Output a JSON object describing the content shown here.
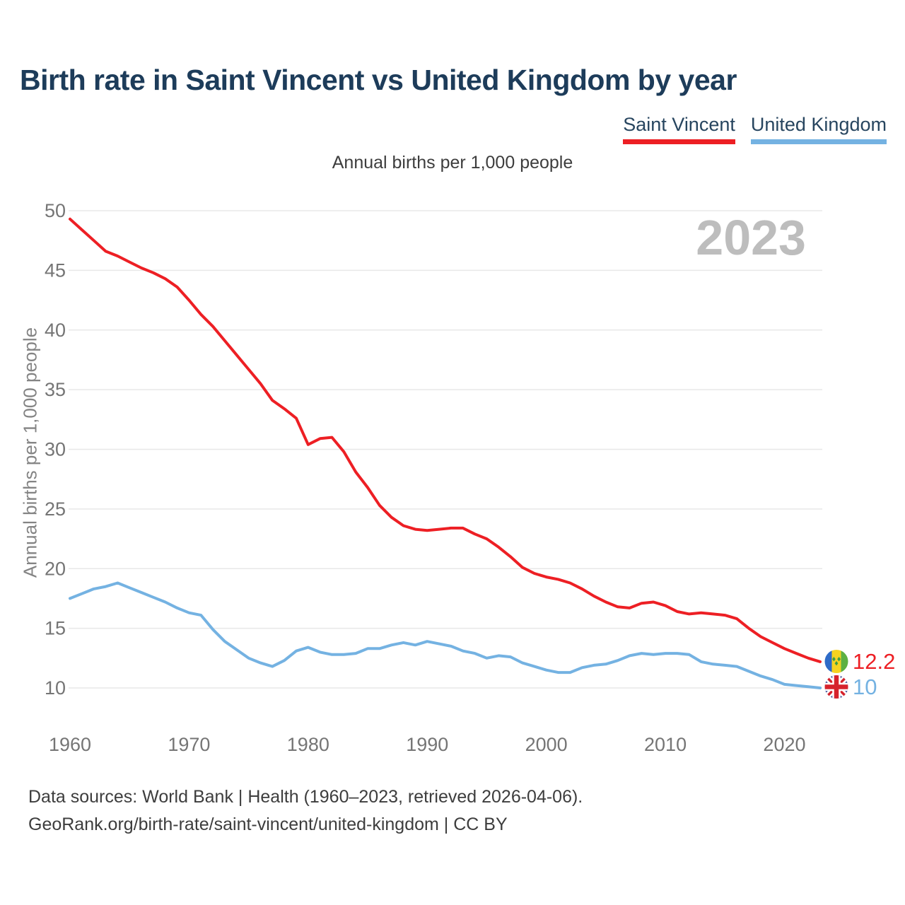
{
  "title": "Birth rate in Saint Vincent vs United Kingdom by year",
  "subtitle": "Annual births per 1,000 people",
  "watermark": "2023",
  "legend": {
    "items": [
      {
        "label": "Saint Vincent",
        "color": "#ed1f24"
      },
      {
        "label": "United Kingdom",
        "color": "#74b2e2"
      }
    ]
  },
  "end_labels": {
    "saint_vincent": "12.2",
    "united_kingdom": "10"
  },
  "footer": {
    "line1": "Data sources: World Bank | Health (1960–2023, retrieved 2026-04-06).",
    "line2": "GeoRank.org/birth-rate/saint-vincent/united-kingdom | CC BY"
  },
  "chart_data": {
    "type": "line",
    "title": "Birth rate in Saint Vincent vs United Kingdom by year",
    "ylabel": "Annual births per 1,000 people",
    "xlabel": "",
    "ylim": [
      10,
      50
    ],
    "xlim": [
      1960,
      2023
    ],
    "yticks": [
      10,
      15,
      20,
      25,
      30,
      35,
      40,
      45,
      50
    ],
    "xticks": [
      1960,
      1970,
      1980,
      1990,
      2000,
      2010,
      2020
    ],
    "grid": "horizontal",
    "legend_position": "top-right",
    "x": [
      1960,
      1961,
      1962,
      1963,
      1964,
      1965,
      1966,
      1967,
      1968,
      1969,
      1970,
      1971,
      1972,
      1973,
      1974,
      1975,
      1976,
      1977,
      1978,
      1979,
      1980,
      1981,
      1982,
      1983,
      1984,
      1985,
      1986,
      1987,
      1988,
      1989,
      1990,
      1991,
      1992,
      1993,
      1994,
      1995,
      1996,
      1997,
      1998,
      1999,
      2000,
      2001,
      2002,
      2003,
      2004,
      2005,
      2006,
      2007,
      2008,
      2009,
      2010,
      2011,
      2012,
      2013,
      2014,
      2015,
      2016,
      2017,
      2018,
      2019,
      2020,
      2021,
      2022,
      2023
    ],
    "series": [
      {
        "name": "Saint Vincent",
        "color": "#ed1f24",
        "values": [
          49.3,
          48.4,
          47.5,
          46.6,
          46.2,
          45.7,
          45.2,
          44.8,
          44.3,
          43.6,
          42.5,
          41.3,
          40.3,
          39.1,
          37.9,
          36.7,
          35.5,
          34.1,
          33.4,
          32.6,
          30.4,
          30.9,
          31.0,
          29.8,
          28.1,
          26.8,
          25.3,
          24.3,
          23.6,
          23.3,
          23.2,
          23.3,
          23.4,
          23.4,
          22.9,
          22.5,
          21.8,
          21.0,
          20.1,
          19.6,
          19.3,
          19.1,
          18.8,
          18.3,
          17.7,
          17.2,
          16.8,
          16.7,
          17.1,
          17.2,
          16.9,
          16.4,
          16.2,
          16.3,
          16.2,
          16.1,
          15.8,
          15.0,
          14.3,
          13.8,
          13.3,
          12.9,
          12.5,
          12.2
        ]
      },
      {
        "name": "United Kingdom",
        "color": "#74b2e2",
        "values": [
          17.5,
          17.9,
          18.3,
          18.5,
          18.8,
          18.4,
          18.0,
          17.6,
          17.2,
          16.7,
          16.3,
          16.1,
          14.9,
          13.9,
          13.2,
          12.5,
          12.1,
          11.8,
          12.3,
          13.1,
          13.4,
          13.0,
          12.8,
          12.8,
          12.9,
          13.3,
          13.3,
          13.6,
          13.8,
          13.6,
          13.9,
          13.7,
          13.5,
          13.1,
          12.9,
          12.5,
          12.7,
          12.6,
          12.1,
          11.8,
          11.5,
          11.3,
          11.3,
          11.7,
          11.9,
          12.0,
          12.3,
          12.7,
          12.9,
          12.8,
          12.9,
          12.9,
          12.8,
          12.2,
          12.0,
          11.9,
          11.8,
          11.4,
          11.0,
          10.7,
          10.3,
          10.2,
          10.1,
          10.0
        ]
      }
    ]
  }
}
